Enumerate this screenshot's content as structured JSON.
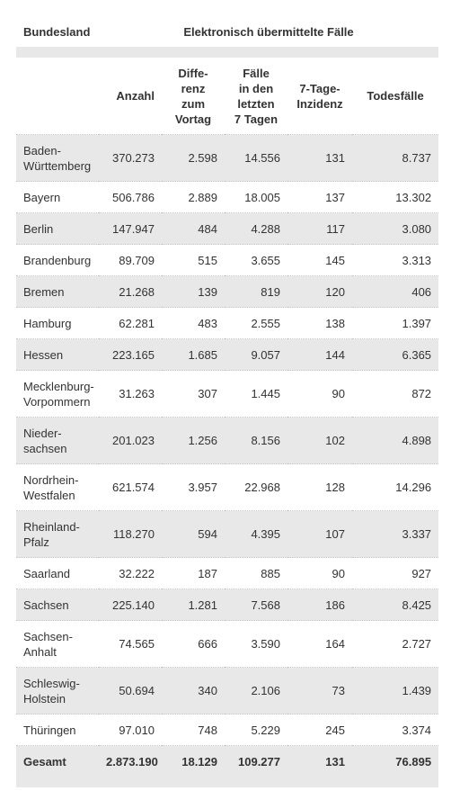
{
  "table": {
    "group_header": {
      "first": "Bundesland",
      "span": "Elektronisch übermittelte Fälle"
    },
    "columns": [
      "Anzahl",
      "Diffe-\nrenz\nzum\nVortag",
      "Fälle\nin den\nletzten\n7 Tagen",
      "7-Tage-\nInzidenz",
      "Todesfälle"
    ],
    "rows": [
      [
        "Baden-\nWürttemberg",
        "370.273",
        "2.598",
        "14.556",
        "131",
        "8.737"
      ],
      [
        "Bayern",
        "506.786",
        "2.889",
        "18.005",
        "137",
        "13.302"
      ],
      [
        "Berlin",
        "147.947",
        "484",
        "4.288",
        "117",
        "3.080"
      ],
      [
        "Brandenburg",
        "89.709",
        "515",
        "3.655",
        "145",
        "3.313"
      ],
      [
        "Bremen",
        "21.268",
        "139",
        "819",
        "120",
        "406"
      ],
      [
        "Hamburg",
        "62.281",
        "483",
        "2.555",
        "138",
        "1.397"
      ],
      [
        "Hessen",
        "223.165",
        "1.685",
        "9.057",
        "144",
        "6.365"
      ],
      [
        "Mecklenburg-\nVorpommern",
        "31.263",
        "307",
        "1.445",
        "90",
        "872"
      ],
      [
        "Nieder-\nsachsen",
        "201.023",
        "1.256",
        "8.156",
        "102",
        "4.898"
      ],
      [
        "Nordrhein-\nWestfalen",
        "621.574",
        "3.957",
        "22.968",
        "128",
        "14.296"
      ],
      [
        "Rheinland-\nPfalz",
        "118.270",
        "594",
        "4.395",
        "107",
        "3.337"
      ],
      [
        "Saarland",
        "32.222",
        "187",
        "885",
        "90",
        "927"
      ],
      [
        "Sachsen",
        "225.140",
        "1.281",
        "7.568",
        "186",
        "8.425"
      ],
      [
        "Sachsen-\nAnhalt",
        "74.565",
        "666",
        "3.590",
        "164",
        "2.727"
      ],
      [
        "Schleswig-\nHolstein",
        "50.694",
        "340",
        "2.106",
        "73",
        "1.439"
      ],
      [
        "Thüringen",
        "97.010",
        "748",
        "5.229",
        "245",
        "3.374"
      ]
    ],
    "total": [
      "Gesamt",
      "2.873.190",
      "18.129",
      "109.277",
      "131",
      "76.895"
    ]
  }
}
